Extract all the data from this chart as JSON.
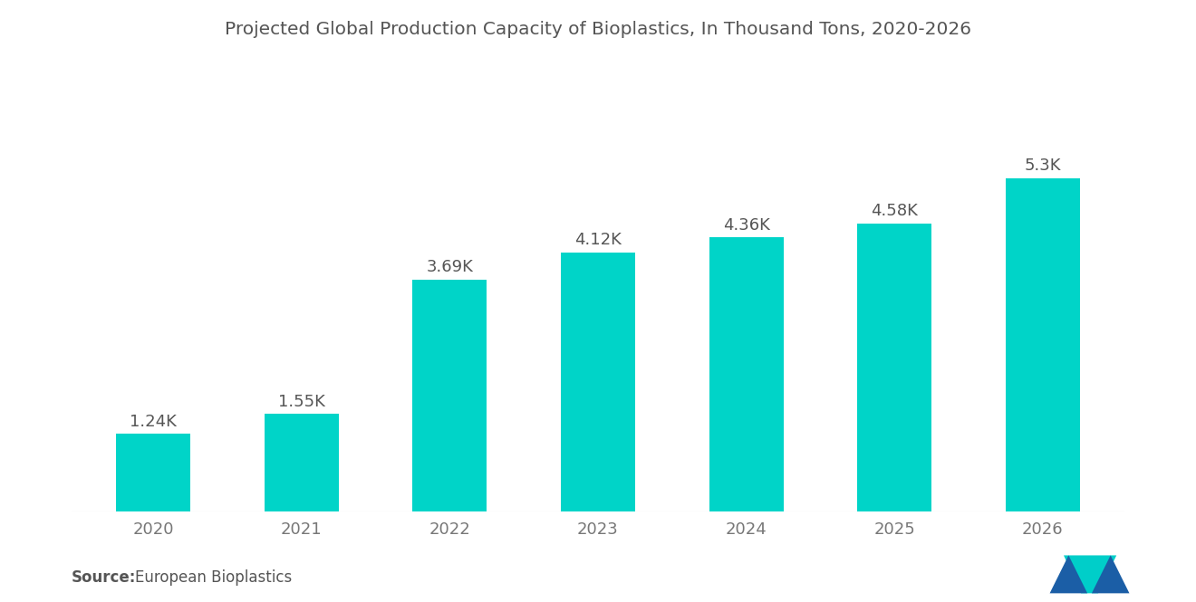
{
  "title": "Projected Global Production Capacity of Bioplastics, In Thousand Tons, 2020-2026",
  "categories": [
    "2020",
    "2021",
    "2022",
    "2023",
    "2024",
    "2025",
    "2026"
  ],
  "values": [
    1.24,
    1.55,
    3.69,
    4.12,
    4.36,
    4.58,
    5.3
  ],
  "labels": [
    "1.24K",
    "1.55K",
    "3.69K",
    "4.12K",
    "4.36K",
    "4.58K",
    "5.3K"
  ],
  "bar_color": "#00D4C8",
  "background_color": "#ffffff",
  "title_color": "#555555",
  "label_color": "#555555",
  "tick_color": "#777777",
  "source_bold": "Source:",
  "source_normal": "  European Bioplastics",
  "ylim": [
    0,
    6.5
  ],
  "title_fontsize": 14.5,
  "label_fontsize": 13,
  "tick_fontsize": 13,
  "source_fontsize": 12,
  "bar_width": 0.5
}
